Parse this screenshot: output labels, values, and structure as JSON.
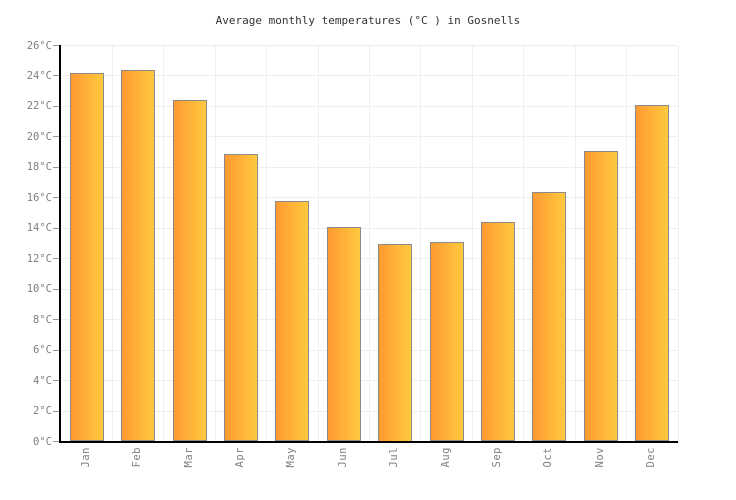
{
  "chart_data": {
    "type": "bar",
    "title": "Average monthly temperatures (°C ) in Gosnells",
    "categories": [
      "Jan",
      "Feb",
      "Mar",
      "Apr",
      "May",
      "Jun",
      "Jul",
      "Aug",
      "Sep",
      "Oct",
      "Nov",
      "Dec"
    ],
    "values": [
      24.2,
      24.4,
      22.4,
      18.9,
      15.8,
      14.1,
      13.0,
      13.1,
      14.4,
      16.4,
      19.1,
      22.1
    ],
    "unit": "°C",
    "xlabel": "",
    "ylabel": "",
    "ylim": [
      0,
      26
    ],
    "ytick_step": 2,
    "ytick_labels": [
      "0°C",
      "2°C",
      "4°C",
      "6°C",
      "8°C",
      "10°C",
      "12°C",
      "14°C",
      "16°C",
      "18°C",
      "20°C",
      "22°C",
      "24°C",
      "26°C"
    ],
    "grid": true,
    "legend": false,
    "colors": {
      "bar_gradient_left": "#ff9a32",
      "bar_gradient_right": "#ffc93e",
      "bar_border": "#8a8a8a",
      "gridline": "#eeeeee",
      "axis": "#000000",
      "tick": "#999999",
      "tick_label": "#808080",
      "title": "#333333"
    }
  }
}
